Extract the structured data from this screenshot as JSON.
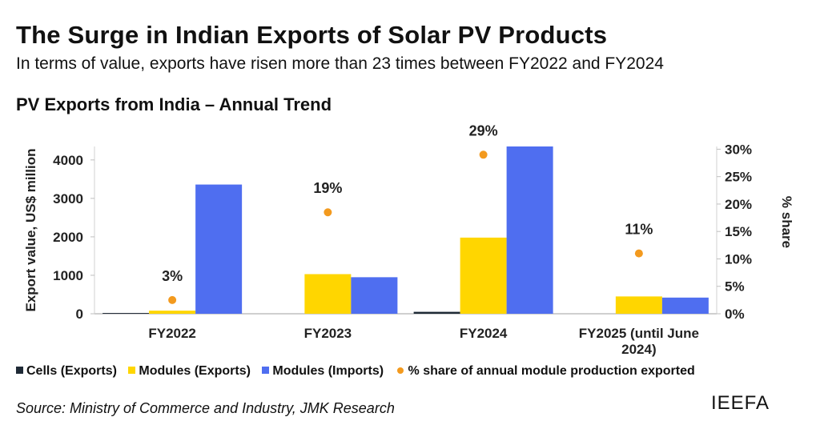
{
  "header": {
    "title": "The Surge in Indian Exports of Solar PV Products",
    "subtitle": "In terms of value, exports have risen more than 23 times between FY2022 and FY2024",
    "chart_title": "PV Exports from India – Annual Trend"
  },
  "chart_data": {
    "type": "bar",
    "title": "PV Exports from India – Annual Trend",
    "categories": [
      "FY2022",
      "FY2023",
      "FY2024",
      "FY2025 (until June 2024)"
    ],
    "ylabel": "Export value, US$ million",
    "y2label": "% share",
    "ylim": [
      0,
      4350
    ],
    "y_ticks": [
      "0",
      "1000",
      "2000",
      "3000",
      "4000"
    ],
    "y_tick_values": [
      0,
      1000,
      2000,
      3000,
      4000
    ],
    "y2lim": [
      0,
      30.5
    ],
    "y2_ticks": [
      "0%",
      "5%",
      "10%",
      "15%",
      "20%",
      "25%",
      "30%"
    ],
    "y2_tick_values": [
      0,
      5,
      10,
      15,
      20,
      25,
      30
    ],
    "grid": false,
    "legend_position": "bottom",
    "series": [
      {
        "name": "Cells (Exports)",
        "type": "bar",
        "axis": "left",
        "color": "#1f2a36",
        "values": [
          20,
          0,
          50,
          0
        ]
      },
      {
        "name": "Modules (Exports)",
        "type": "bar",
        "axis": "left",
        "color": "#ffd600",
        "values": [
          80,
          1030,
          1980,
          450
        ]
      },
      {
        "name": "Modules (Imports)",
        "type": "bar",
        "axis": "left",
        "color": "#4f6ef0",
        "values": [
          3360,
          950,
          4350,
          420
        ]
      },
      {
        "name": "% share of annual module production exported",
        "type": "scatter",
        "axis": "right",
        "color": "#f39a1e",
        "values": [
          2.5,
          18.5,
          29,
          11
        ],
        "data_labels": [
          "3%",
          "19%",
          "29%",
          "11%"
        ]
      }
    ]
  },
  "footer": {
    "source": "Source: Ministry of Commerce and Industry, JMK Research",
    "brand": "IEEFA"
  }
}
